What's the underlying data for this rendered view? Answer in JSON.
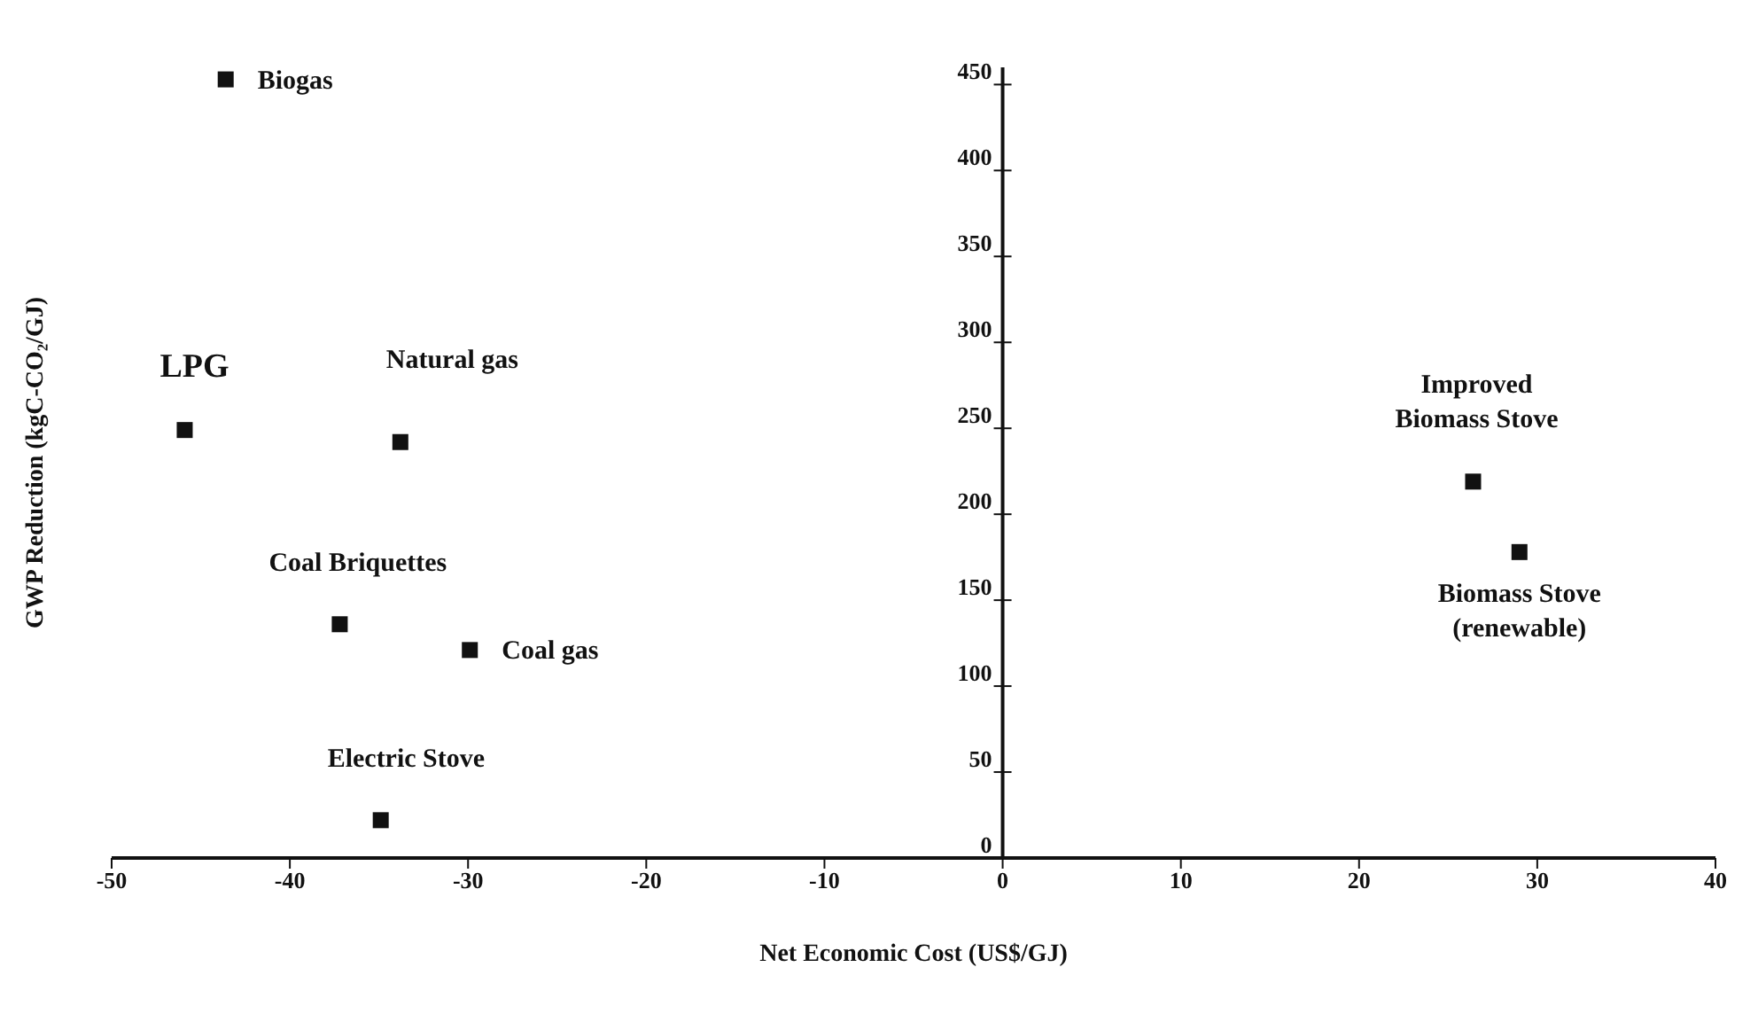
{
  "chart_data": {
    "type": "scatter",
    "xlabel": "Net Economic Cost (US$/GJ)",
    "ylabel": "GWP Reduction (kgC-CO₂/GJ)",
    "x": [
      -43.6,
      -45.9,
      -33.8,
      -37.2,
      -29.9,
      -34.9,
      26.4,
      29
    ],
    "values": [
      453,
      249,
      242,
      136,
      121,
      22,
      219,
      178
    ],
    "color": "#111111",
    "marker": "square",
    "grid": false,
    "legend": false,
    "xlim": [
      -50,
      40
    ],
    "xticks": [
      -50,
      -40,
      -30,
      -20,
      -10,
      0,
      10,
      20,
      30,
      40
    ],
    "ylim": [
      0,
      460
    ],
    "yticks": [
      0,
      50,
      100,
      150,
      200,
      250,
      300,
      350,
      400,
      450
    ],
    "annotations": [
      {
        "text": "Biogas",
        "x": -43.6,
        "y": 453
      },
      {
        "text": "LPG",
        "x": -45.9,
        "y": 249
      },
      {
        "text": "Natural gas",
        "x": -33.8,
        "y": 242
      },
      {
        "text": "Coal Briquettes",
        "x": -37.2,
        "y": 136
      },
      {
        "text": "Coal gas",
        "x": -29.9,
        "y": 121
      },
      {
        "text": "Electric Stove",
        "x": -34.9,
        "y": 22
      },
      {
        "text": "Improved\nBiomass Stove",
        "x": 26.4,
        "y": 219
      },
      {
        "text": "Biomass Stove\n(renewable)",
        "x": 29,
        "y": 178
      }
    ]
  }
}
